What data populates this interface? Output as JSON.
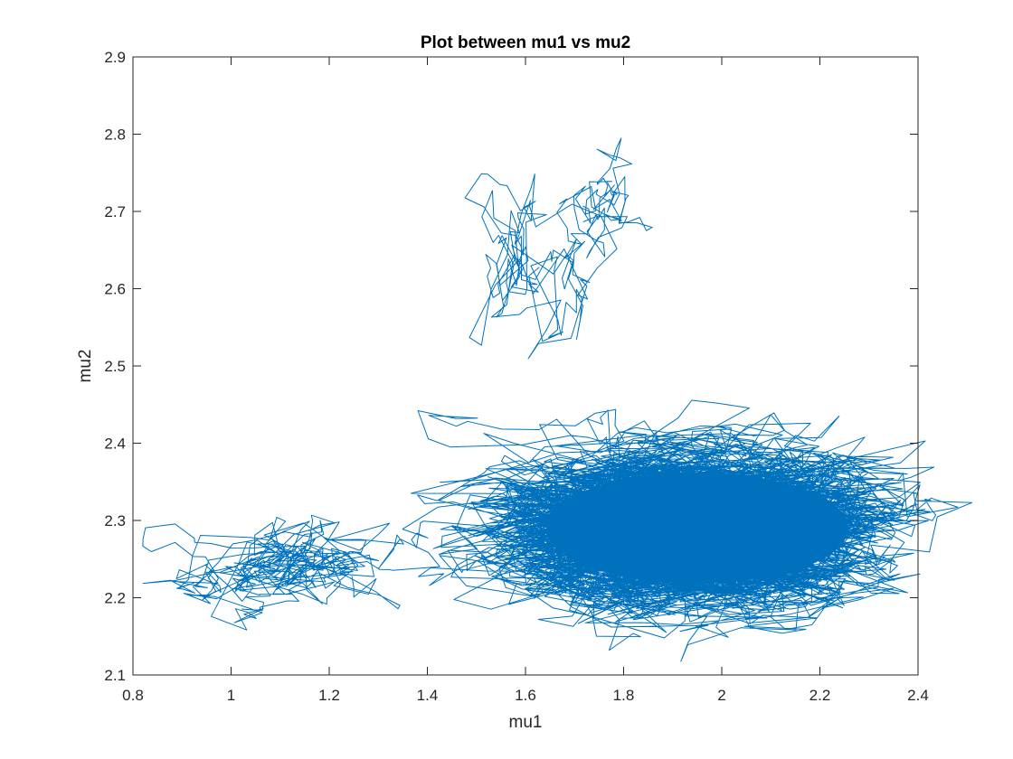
{
  "chart_data": {
    "type": "line",
    "title": "Plot between mu1 vs mu2",
    "xlabel": "mu1",
    "ylabel": "mu2",
    "xlim": [
      0.8,
      2.4
    ],
    "ylim": [
      2.1,
      2.9
    ],
    "xticks": [
      "0.8",
      "1",
      "1.2",
      "1.4",
      "1.6",
      "1.8",
      "2",
      "2.2",
      "2.4"
    ],
    "yticks": [
      "2.1",
      "2.2",
      "2.3",
      "2.4",
      "2.5",
      "2.6",
      "2.7",
      "2.8",
      "2.9"
    ],
    "grid": false,
    "legend": "none",
    "series": [
      {
        "color": "#0072BD",
        "description_of_trace": "random-walk trace of (mu1, mu2) samples",
        "regions": [
          {
            "center": [
              1.13,
              2.24
            ],
            "spread": [
              0.13,
              0.05
            ],
            "points": 380
          },
          {
            "center": [
              1.62,
              2.6
            ],
            "spread": [
              0.09,
              0.09
            ],
            "points": 140
          },
          {
            "center": [
              1.75,
              2.72
            ],
            "spread": [
              0.06,
              0.05
            ],
            "points": 90
          },
          {
            "center": [
              1.95,
              2.29
            ],
            "spread": [
              0.22,
              0.055
            ],
            "points": 9000
          }
        ]
      }
    ]
  }
}
